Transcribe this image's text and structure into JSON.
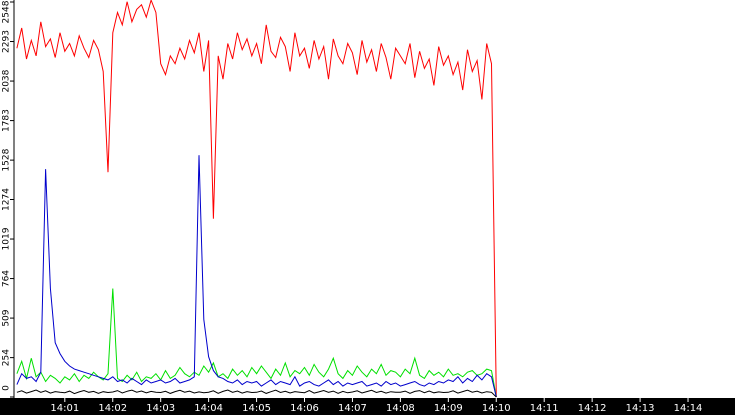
{
  "chart_data": {
    "type": "line",
    "xlim": [
      -0.06,
      14.98
    ],
    "xticks": [
      {
        "value": 1,
        "label": "14:01"
      },
      {
        "value": 2,
        "label": "14:02"
      },
      {
        "value": 3,
        "label": "14:03"
      },
      {
        "value": 4,
        "label": "14:04"
      },
      {
        "value": 5,
        "label": "14:05"
      },
      {
        "value": 6,
        "label": "14:06"
      },
      {
        "value": 7,
        "label": "14:07"
      },
      {
        "value": 8,
        "label": "14:08"
      },
      {
        "value": 9,
        "label": "14:09"
      },
      {
        "value": 10,
        "label": "14:10"
      },
      {
        "value": 11,
        "label": "14:11"
      },
      {
        "value": 12,
        "label": "14:12"
      },
      {
        "value": 13,
        "label": "14:13"
      },
      {
        "value": 14,
        "label": "14:14"
      }
    ],
    "ylim": [
      0,
      2548
    ],
    "yticks": [
      0,
      254,
      509,
      764,
      1019,
      1274,
      1528,
      1783,
      2038,
      2293,
      2548
    ],
    "x": [
      0,
      0.1,
      0.2,
      0.3,
      0.4,
      0.5,
      0.6,
      0.7,
      0.8,
      0.9,
      1,
      1.1,
      1.2,
      1.3,
      1.4,
      1.5,
      1.6,
      1.7,
      1.8,
      1.9,
      2,
      2.1,
      2.2,
      2.3,
      2.4,
      2.5,
      2.6,
      2.7,
      2.8,
      2.9,
      3,
      3.1,
      3.2,
      3.3,
      3.4,
      3.5,
      3.6,
      3.7,
      3.8,
      3.9,
      4,
      4.1,
      4.2,
      4.3,
      4.4,
      4.5,
      4.6,
      4.7,
      4.8,
      4.9,
      5,
      5.1,
      5.2,
      5.3,
      5.4,
      5.5,
      5.6,
      5.7,
      5.8,
      5.9,
      6,
      6.1,
      6.2,
      6.3,
      6.4,
      6.5,
      6.6,
      6.7,
      6.8,
      6.9,
      7,
      7.1,
      7.2,
      7.3,
      7.4,
      7.5,
      7.6,
      7.7,
      7.8,
      7.9,
      8,
      8.1,
      8.2,
      8.3,
      8.4,
      8.5,
      8.6,
      8.7,
      8.8,
      8.9,
      9,
      9.1,
      9.2,
      9.3,
      9.4,
      9.5,
      9.6,
      9.7,
      9.8,
      9.9,
      10
    ],
    "series": [
      {
        "color": "#ff0000",
        "values": [
          2250,
          2380,
          2180,
          2300,
          2200,
          2420,
          2260,
          2310,
          2190,
          2350,
          2230,
          2280,
          2200,
          2330,
          2250,
          2190,
          2300,
          2240,
          2100,
          1450,
          2350,
          2480,
          2400,
          2550,
          2420,
          2500,
          2530,
          2450,
          2560,
          2480,
          2150,
          2080,
          2200,
          2150,
          2250,
          2180,
          2300,
          2220,
          2350,
          2100,
          2300,
          1150,
          2200,
          2050,
          2280,
          2180,
          2350,
          2240,
          2310,
          2200,
          2280,
          2150,
          2400,
          2230,
          2190,
          2320,
          2260,
          2100,
          2350,
          2200,
          2250,
          2120,
          2300,
          2180,
          2260,
          2050,
          2310,
          2200,
          2150,
          2280,
          2220,
          2080,
          2300,
          2160,
          2240,
          2100,
          2280,
          2190,
          2050,
          2250,
          2200,
          2150,
          2280,
          2060,
          2230,
          2120,
          2180,
          2010,
          2260,
          2140,
          2200,
          2080,
          2160,
          1980,
          2240,
          2100,
          2170,
          1920,
          2280,
          2150,
          0
        ]
      },
      {
        "color": "#00e000",
        "values": [
          150,
          230,
          120,
          250,
          130,
          160,
          100,
          140,
          120,
          90,
          130,
          110,
          150,
          100,
          140,
          120,
          160,
          130,
          110,
          150,
          700,
          120,
          100,
          140,
          110,
          160,
          100,
          130,
          120,
          150,
          110,
          170,
          120,
          140,
          190,
          150,
          130,
          160,
          140,
          200,
          160,
          220,
          130,
          150,
          120,
          180,
          140,
          170,
          130,
          190,
          150,
          200,
          160,
          120,
          180,
          140,
          220,
          130,
          170,
          150,
          190,
          140,
          210,
          160,
          130,
          180,
          250,
          150,
          120,
          170,
          140,
          200,
          160,
          130,
          180,
          150,
          210,
          140,
          170,
          160,
          130,
          180,
          150,
          250,
          140,
          120,
          170,
          140,
          160,
          130,
          180,
          140,
          150,
          130,
          160,
          170,
          140,
          150,
          180,
          170,
          0
        ]
      },
      {
        "color": "#0000cc",
        "values": [
          80,
          150,
          120,
          130,
          100,
          160,
          1470,
          700,
          350,
          280,
          230,
          200,
          180,
          170,
          160,
          150,
          140,
          130,
          120,
          110,
          130,
          100,
          110,
          90,
          120,
          100,
          80,
          110,
          90,
          100,
          110,
          90,
          100,
          120,
          90,
          100,
          110,
          130,
          1560,
          500,
          260,
          170,
          130,
          120,
          100,
          90,
          110,
          80,
          100,
          90,
          100,
          70,
          90,
          110,
          80,
          100,
          90,
          80,
          130,
          70,
          90,
          100,
          80,
          70,
          90,
          110,
          80,
          100,
          70,
          90,
          80,
          90,
          100,
          70,
          80,
          90,
          70,
          100,
          80,
          90,
          70,
          80,
          90,
          100,
          80,
          70,
          90,
          80,
          100,
          90,
          110,
          100,
          130,
          90,
          120,
          100,
          140,
          110,
          150,
          130,
          0
        ]
      },
      {
        "color": "#000000",
        "values": [
          30,
          40,
          25,
          35,
          45,
          30,
          40,
          25,
          35,
          30,
          28,
          38,
          22,
          33,
          42,
          30,
          36,
          24,
          34,
          29,
          32,
          41,
          26,
          37,
          44,
          31,
          39,
          27,
          36,
          30,
          29,
          37,
          23,
          35,
          43,
          31,
          38,
          26,
          33,
          28,
          31,
          40,
          24,
          36,
          45,
          30,
          39,
          25,
          35,
          29,
          30,
          39,
          23,
          34,
          44,
          29,
          37,
          26,
          35,
          31,
          28,
          41,
          25,
          33,
          42,
          30,
          38,
          24,
          36,
          27,
          32,
          40,
          26,
          35,
          43,
          29,
          37,
          25,
          34,
          30,
          31,
          38,
          24,
          36,
          41,
          28,
          39,
          27,
          33,
          29,
          30,
          40,
          25,
          35,
          44,
          31,
          38,
          26,
          34,
          30,
          0
        ]
      }
    ]
  }
}
